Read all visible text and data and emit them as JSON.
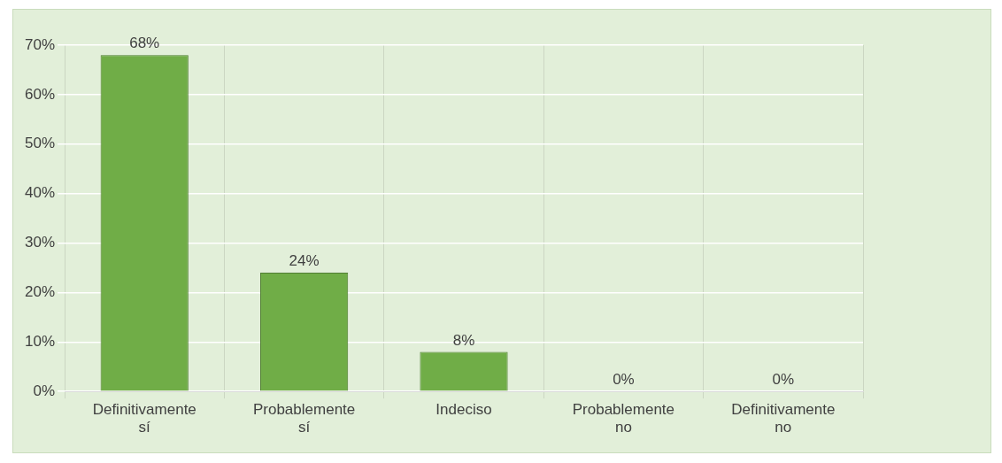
{
  "chart_data": {
    "type": "bar",
    "categories": [
      "Definitivamente sí",
      "Probablemente sí",
      "Indeciso",
      "Probablemente no",
      "Definitivamente no"
    ],
    "values": [
      68,
      24,
      8,
      0,
      0
    ],
    "value_labels": [
      "68%",
      "24%",
      "8%",
      "0%",
      "0%"
    ],
    "color": "#70ad47",
    "ylim": [
      0,
      70
    ],
    "yticks": [
      {
        "value": 0,
        "label": "0%"
      },
      {
        "value": 10,
        "label": "10%"
      },
      {
        "value": 20,
        "label": "20%"
      },
      {
        "value": 30,
        "label": "30%"
      },
      {
        "value": 40,
        "label": "40%"
      },
      {
        "value": 50,
        "label": "50%"
      },
      {
        "value": 60,
        "label": "60%"
      },
      {
        "value": 70,
        "label": "70%"
      }
    ],
    "grid": true
  }
}
